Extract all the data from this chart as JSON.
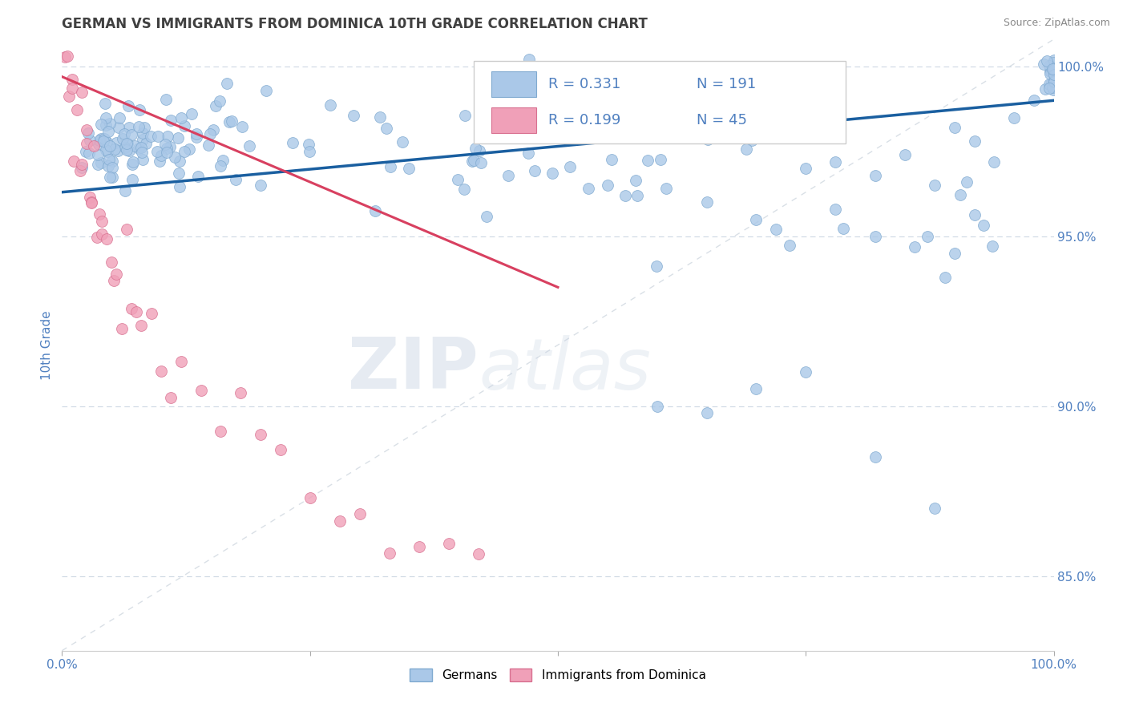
{
  "title": "GERMAN VS IMMIGRANTS FROM DOMINICA 10TH GRADE CORRELATION CHART",
  "source": "Source: ZipAtlas.com",
  "ylabel": "10th Grade",
  "xmin": 0.0,
  "xmax": 1.0,
  "ymin": 0.828,
  "ymax": 1.008,
  "ytick_positions": [
    0.85,
    0.9,
    0.95,
    1.0
  ],
  "ytick_labels": [
    "85.0%",
    "90.0%",
    "95.0%",
    "100.0%"
  ],
  "blue_color": "#aac8e8",
  "blue_edge": "#80aad0",
  "pink_color": "#f0a0b8",
  "pink_edge": "#d87090",
  "line_blue_color": "#1a5fa0",
  "line_pink_color": "#d84060",
  "diag_color": "#d0d8e0",
  "legend_R_blue": "R = 0.331",
  "legend_N_blue": "N = 191",
  "legend_R_pink": "R = 0.199",
  "legend_N_pink": "N = 45",
  "legend_label_blue": "Germans",
  "legend_label_pink": "Immigrants from Dominica",
  "watermark_zip": "ZIP",
  "watermark_atlas": "atlas",
  "title_color": "#404040",
  "axis_label_color": "#5080c0",
  "tick_color": "#5080c0",
  "background_color": "#ffffff",
  "marker_size": 100,
  "blue_line_x": [
    0.0,
    1.0
  ],
  "blue_line_y": [
    0.963,
    0.99
  ],
  "pink_line_x": [
    0.0,
    0.5
  ],
  "pink_line_y": [
    0.997,
    0.935
  ]
}
